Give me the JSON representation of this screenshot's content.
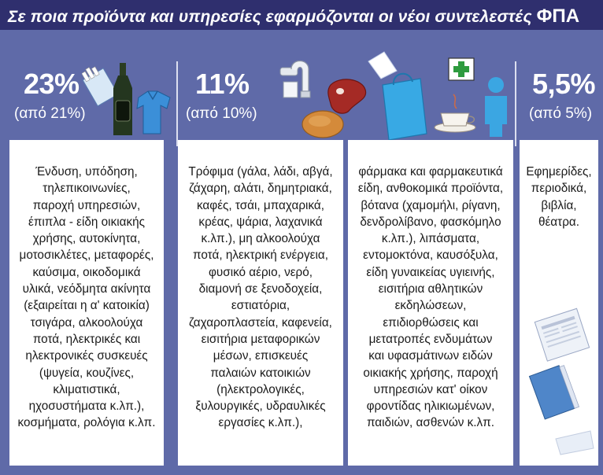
{
  "title": {
    "main": "Σε ποια προϊόντα και υπηρεσίες εφαρμόζονται οι νέοι συντελεστές",
    "vat": "ΦΠΑ"
  },
  "columns": [
    {
      "rate": "23%",
      "previous": "(από 21%)",
      "lines": [
        "Ένδυση, υπόδηση,",
        "τηλεπικοινωνίες,",
        "παροχή υπηρεσιών,",
        "έπιπλα - είδη οικιακής",
        "χρήσης, αυτοκίνητα,",
        "μοτοσικλέτες, μεταφορές,",
        "καύσιμα, οικοδομικά",
        "υλικά, νεόδμητα ακίνητα",
        "(εξαιρείται η α' κατοικία)",
        "τσιγάρα, αλκοολούχα",
        "ποτά, ηλεκτρικές και",
        "ηλεκτρονικές συσκευές",
        "(ψυγεία, κουζίνες,",
        "κλιματιστικά,",
        "ηχοσυστήματα κ.λπ.),",
        "κοσμήματα, ρολόγια κ.λπ."
      ]
    },
    {
      "rate": "11%",
      "previous": "(από 10%)",
      "lines": [
        "Τρόφιμα (γάλα, λάδι, αβγά,",
        "ζάχαρη, αλάτι, δημητριακά,",
        "καφές, τσάι, μπαχαρικά,",
        "κρέας, ψάρια, λαχανικά",
        "κ.λπ.), μη αλκοολούχα",
        "ποτά, ηλεκτρική ενέργεια,",
        "φυσικό αέριο, νερό,",
        "διαμονή σε ξενοδοχεία,",
        "εστιατόρια,",
        "ζαχαροπλαστεία, καφενεία,",
        "εισιτήρια μεταφορικών",
        "μέσων, επισκευές",
        "παλαιών κατοικιών",
        "(ηλεκτρολογικές,",
        "ξυλουργικές, υδραυλικές",
        "εργασίες κ.λπ.),"
      ]
    },
    {
      "lines": [
        "φάρμακα και φαρμακευτικά",
        "είδη, ανθοκομικά προϊόντα,",
        "βότανα (χαμομήλι, ρίγανη,",
        "δενδρολίβανο, φασκόμηλο",
        "κ.λπ.), λιπάσματα,",
        "εντομοκτόνα, καυσόξυλα,",
        "είδη γυναικείας υγιεινής,",
        "εισιτήρια αθλητικών",
        "εκδηλώσεων,",
        "επιδιορθώσεις και",
        "μετατροπές ενδυμάτων",
        "και υφασμάτινων ειδών",
        "οικιακής χρήσης, παροχή",
        "υπηρεσιών κατ' οίκον",
        "φροντίδας ηλικιωμένων,",
        "παιδιών, ασθενών κ.λπ."
      ]
    },
    {
      "rate": "5,5%",
      "previous": "(από 5%)",
      "lines": [
        "Εφημερίδες,",
        "περιοδικά,",
        "βιβλία,",
        "θέατρα."
      ]
    }
  ],
  "colors": {
    "background": "#5f6aa8",
    "title_bar": "#2f2f6e",
    "card": "#ffffff",
    "text": "#1a1a1a"
  }
}
